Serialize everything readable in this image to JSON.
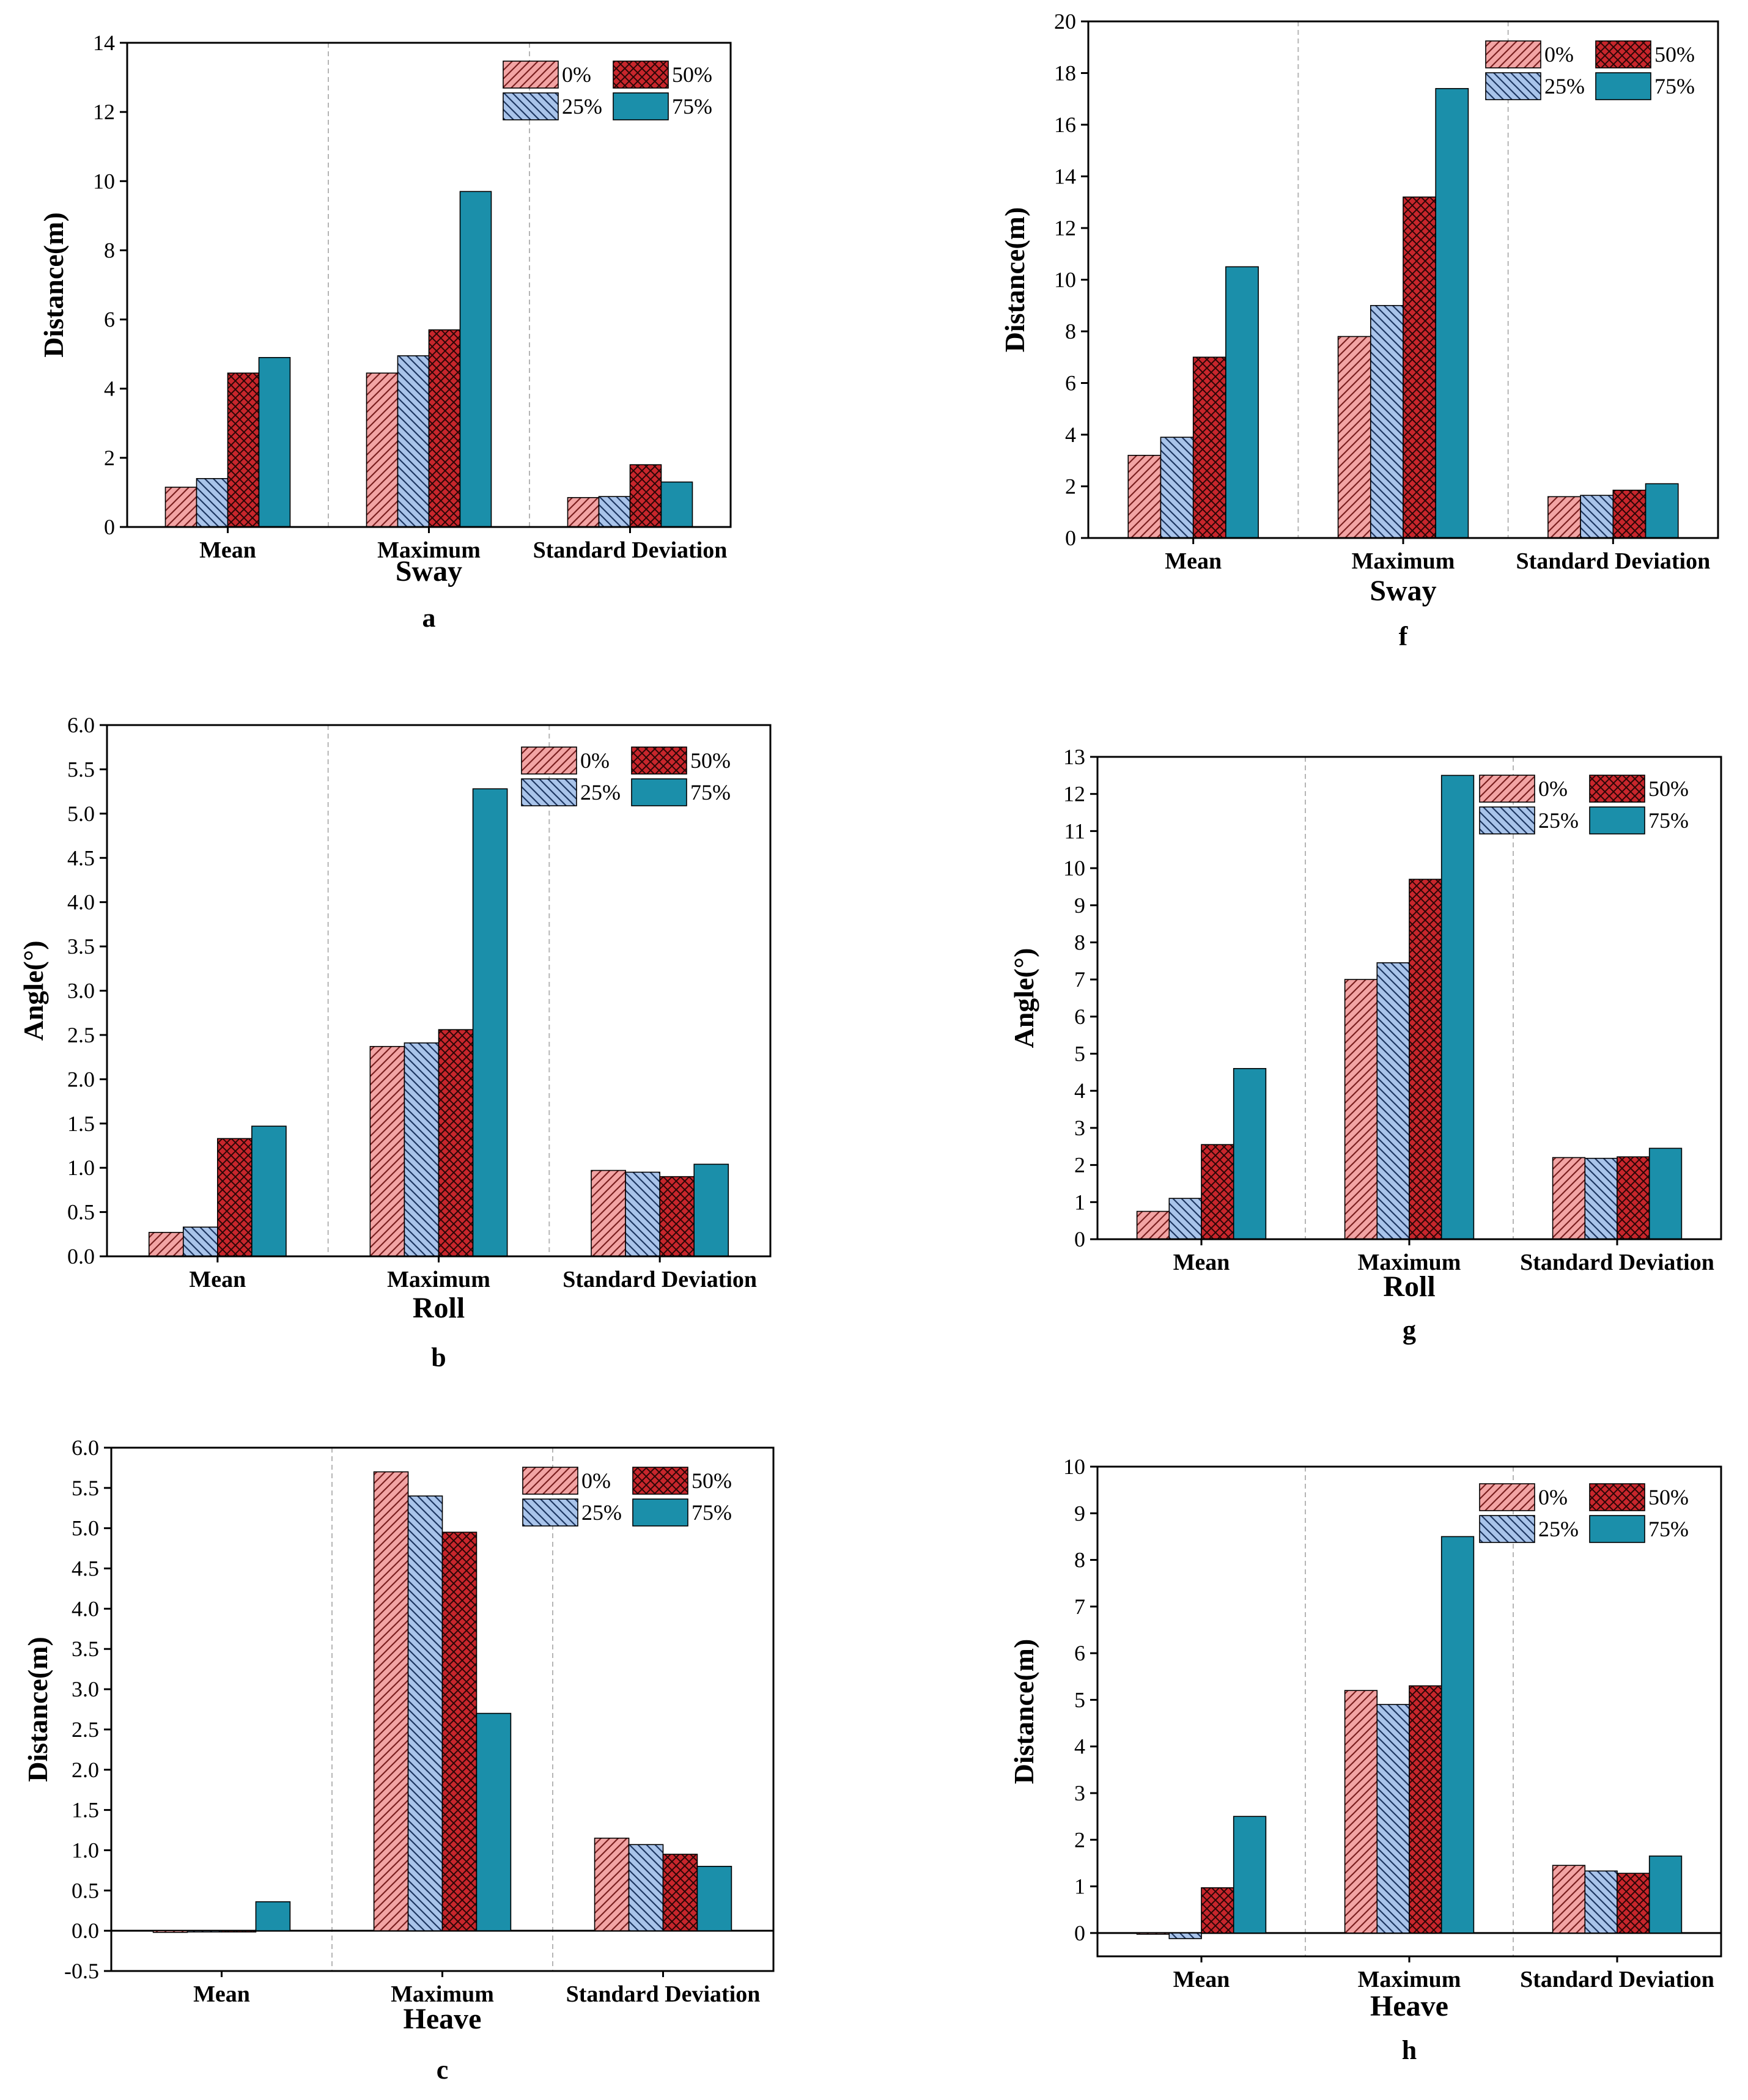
{
  "series_names": [
    "0%",
    "25%",
    "50%",
    "75%"
  ],
  "series_colors": [
    "#f2a4a4",
    "#a9c4ea",
    "#c8262c",
    "#1b8faa"
  ],
  "series_patterns": [
    "hatch-red",
    "hatch-blue",
    "cross-red",
    "solid"
  ],
  "chart_data": [
    {
      "panel": "a",
      "type": "bar",
      "xlabel": "Sway",
      "ylabel": "Distance(m)",
      "categories": [
        "Mean",
        "Maximum",
        "Standard Deviation"
      ],
      "ylim": [
        0,
        14
      ],
      "yticks": [
        0,
        2,
        4,
        6,
        8,
        10,
        12,
        14
      ],
      "tick_labels": [
        "0",
        "2",
        "4",
        "6",
        "8",
        "10",
        "12",
        "14"
      ],
      "series": [
        {
          "name": "0%",
          "values": [
            1.15,
            4.45,
            0.85
          ]
        },
        {
          "name": "25%",
          "values": [
            1.4,
            4.95,
            0.88
          ]
        },
        {
          "name": "50%",
          "values": [
            4.45,
            5.7,
            1.8
          ]
        },
        {
          "name": "75%",
          "values": [
            4.9,
            9.7,
            1.3
          ]
        }
      ]
    },
    {
      "panel": "f",
      "type": "bar",
      "xlabel": "Sway",
      "ylabel": "Distance(m)",
      "categories": [
        "Mean",
        "Maximum",
        "Standard Deviation"
      ],
      "ylim": [
        0,
        20
      ],
      "yticks": [
        0,
        2,
        4,
        6,
        8,
        10,
        12,
        14,
        16,
        18,
        20
      ],
      "tick_labels": [
        "0",
        "2",
        "4",
        "6",
        "8",
        "10",
        "12",
        "14",
        "16",
        "18",
        "20"
      ],
      "series": [
        {
          "name": "0%",
          "values": [
            3.2,
            7.8,
            1.6
          ]
        },
        {
          "name": "25%",
          "values": [
            3.9,
            9.0,
            1.65
          ]
        },
        {
          "name": "50%",
          "values": [
            7.0,
            13.2,
            1.85
          ]
        },
        {
          "name": "75%",
          "values": [
            10.5,
            17.4,
            2.1
          ]
        }
      ]
    },
    {
      "panel": "b",
      "type": "bar",
      "xlabel": "Roll",
      "ylabel": "Angle(°)",
      "categories": [
        "Mean",
        "Maximum",
        "Standard Deviation"
      ],
      "ylim": [
        0,
        6
      ],
      "yticks": [
        0,
        0.5,
        1,
        1.5,
        2,
        2.5,
        3,
        3.5,
        4,
        4.5,
        5,
        5.5,
        6
      ],
      "tick_labels": [
        "0.0",
        "0.5",
        "1.0",
        "1.5",
        "2.0",
        "2.5",
        "3.0",
        "3.5",
        "4.0",
        "4.5",
        "5.0",
        "5.5",
        "6.0"
      ],
      "series": [
        {
          "name": "0%",
          "values": [
            0.27,
            2.37,
            0.97
          ]
        },
        {
          "name": "25%",
          "values": [
            0.33,
            2.41,
            0.95
          ]
        },
        {
          "name": "50%",
          "values": [
            1.33,
            2.56,
            0.9
          ]
        },
        {
          "name": "75%",
          "values": [
            1.47,
            5.28,
            1.04
          ]
        }
      ]
    },
    {
      "panel": "g",
      "type": "bar",
      "xlabel": "Roll",
      "ylabel": "Angle(°)",
      "categories": [
        "Mean",
        "Maximum",
        "Standard Deviation"
      ],
      "ylim": [
        0,
        13
      ],
      "yticks": [
        0,
        1,
        2,
        3,
        4,
        5,
        6,
        7,
        8,
        9,
        10,
        11,
        12,
        13
      ],
      "tick_labels": [
        "0",
        "1",
        "2",
        "3",
        "4",
        "5",
        "6",
        "7",
        "8",
        "9",
        "10",
        "11",
        "12",
        "13"
      ],
      "series": [
        {
          "name": "0%",
          "values": [
            0.75,
            7.0,
            2.2
          ]
        },
        {
          "name": "25%",
          "values": [
            1.1,
            7.45,
            2.18
          ]
        },
        {
          "name": "50%",
          "values": [
            2.55,
            9.7,
            2.22
          ]
        },
        {
          "name": "75%",
          "values": [
            4.6,
            12.5,
            2.45
          ]
        }
      ]
    },
    {
      "panel": "c",
      "type": "bar",
      "xlabel": "Heave",
      "ylabel": "Distance(m)",
      "categories": [
        "Mean",
        "Maximum",
        "Standard Deviation"
      ],
      "ylim": [
        -0.5,
        6
      ],
      "yticks": [
        -0.5,
        0,
        0.5,
        1,
        1.5,
        2,
        2.5,
        3,
        3.5,
        4,
        4.5,
        5,
        5.5,
        6
      ],
      "tick_labels": [
        "-0.5",
        "0.0",
        "0.5",
        "1.0",
        "1.5",
        "2.0",
        "2.5",
        "3.0",
        "3.5",
        "4.0",
        "4.5",
        "5.0",
        "5.5",
        "6.0"
      ],
      "series": [
        {
          "name": "0%",
          "values": [
            -0.02,
            5.7,
            1.15
          ]
        },
        {
          "name": "25%",
          "values": [
            -0.01,
            5.4,
            1.07
          ]
        },
        {
          "name": "50%",
          "values": [
            0.0,
            4.95,
            0.95
          ]
        },
        {
          "name": "75%",
          "values": [
            0.36,
            2.7,
            0.8
          ]
        }
      ]
    },
    {
      "panel": "h",
      "type": "bar",
      "xlabel": "Heave",
      "ylabel": "Distance(m)",
      "categories": [
        "Mean",
        "Maximum",
        "Standard Deviation"
      ],
      "ylim": [
        -0.5,
        10
      ],
      "yticks": [
        0,
        1,
        2,
        3,
        4,
        5,
        6,
        7,
        8,
        9,
        10
      ],
      "tick_labels": [
        "0",
        "1",
        "2",
        "3",
        "4",
        "5",
        "6",
        "7",
        "8",
        "9",
        "10"
      ],
      "series": [
        {
          "name": "0%",
          "values": [
            -0.02,
            5.2,
            1.45
          ]
        },
        {
          "name": "25%",
          "values": [
            -0.12,
            4.9,
            1.33
          ]
        },
        {
          "name": "50%",
          "values": [
            0.97,
            5.3,
            1.28
          ]
        },
        {
          "name": "75%",
          "values": [
            2.5,
            8.5,
            1.65
          ]
        }
      ]
    }
  ]
}
